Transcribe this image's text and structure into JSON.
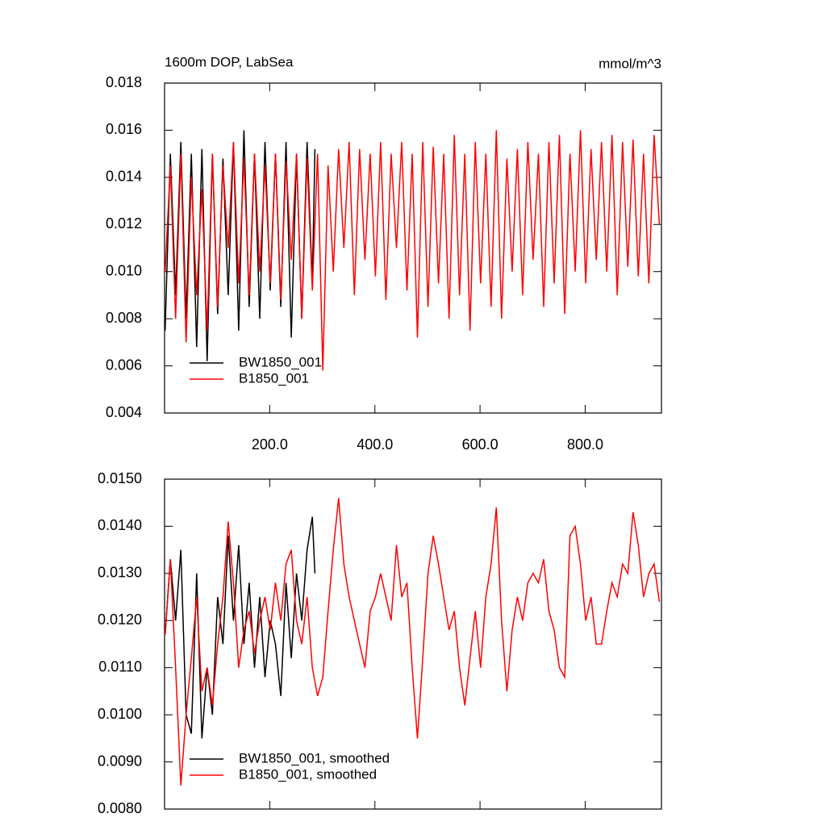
{
  "chart_data": [
    {
      "type": "line",
      "title": "1600m DOP, LabSea",
      "units": "mmol/m^3",
      "xlim": [
        0,
        945
      ],
      "ylim": [
        0.004,
        0.018
      ],
      "xticks": [
        {
          "value": 200,
          "label": "200.0"
        },
        {
          "value": 400,
          "label": "400.0"
        },
        {
          "value": 600,
          "label": "600.0"
        },
        {
          "value": 800,
          "label": "800.0"
        }
      ],
      "yticks": [
        {
          "value": 0.004,
          "label": "0.004"
        },
        {
          "value": 0.006,
          "label": "0.006"
        },
        {
          "value": 0.008,
          "label": "0.008"
        },
        {
          "value": 0.01,
          "label": "0.010"
        },
        {
          "value": 0.012,
          "label": "0.012"
        },
        {
          "value": 0.014,
          "label": "0.014"
        },
        {
          "value": 0.016,
          "label": "0.016"
        },
        {
          "value": 0.018,
          "label": "0.018"
        }
      ],
      "legend": "lower left",
      "series": [
        {
          "name": "BW1850_001",
          "color": "#000000",
          "x": [
            1,
            11,
            21,
            31,
            41,
            51,
            61,
            71,
            81,
            91,
            101,
            111,
            121,
            131,
            141,
            151,
            161,
            171,
            181,
            191,
            201,
            211,
            221,
            231,
            241,
            251,
            261,
            271,
            281,
            286
          ],
          "values": [
            0.0075,
            0.015,
            0.009,
            0.0155,
            0.008,
            0.015,
            0.0068,
            0.0152,
            0.0062,
            0.015,
            0.0082,
            0.0148,
            0.009,
            0.0155,
            0.0075,
            0.016,
            0.0085,
            0.015,
            0.008,
            0.0155,
            0.0092,
            0.015,
            0.0085,
            0.0155,
            0.0072,
            0.015,
            0.008,
            0.0155,
            0.0095,
            0.0152
          ]
        },
        {
          "name": "B1850_001",
          "color": "#ff0000",
          "x": [
            1,
            11,
            21,
            31,
            41,
            51,
            61,
            71,
            81,
            91,
            101,
            111,
            121,
            131,
            141,
            151,
            161,
            171,
            181,
            191,
            201,
            211,
            221,
            231,
            241,
            251,
            261,
            271,
            281,
            291,
            301,
            311,
            321,
            331,
            341,
            351,
            361,
            371,
            381,
            391,
            401,
            411,
            421,
            431,
            441,
            451,
            461,
            471,
            481,
            491,
            501,
            511,
            521,
            531,
            541,
            551,
            561,
            571,
            581,
            591,
            601,
            611,
            621,
            631,
            641,
            651,
            661,
            671,
            681,
            691,
            701,
            711,
            721,
            731,
            741,
            751,
            761,
            771,
            781,
            791,
            801,
            811,
            821,
            831,
            841,
            851,
            861,
            871,
            881,
            891,
            901,
            911,
            921,
            931,
            941
          ],
          "values": [
            0.01,
            0.0145,
            0.008,
            0.015,
            0.007,
            0.014,
            0.009,
            0.0135,
            0.0075,
            0.015,
            0.0085,
            0.0145,
            0.011,
            0.0155,
            0.0095,
            0.0148,
            0.009,
            0.015,
            0.01,
            0.0145,
            0.0095,
            0.015,
            0.0088,
            0.0147,
            0.0105,
            0.015,
            0.008,
            0.0148,
            0.0092,
            0.015,
            0.0058,
            0.0145,
            0.01,
            0.0152,
            0.011,
            0.0155,
            0.009,
            0.0152,
            0.0105,
            0.015,
            0.0098,
            0.0155,
            0.0088,
            0.015,
            0.011,
            0.0155,
            0.0092,
            0.015,
            0.0072,
            0.0155,
            0.0085,
            0.0153,
            0.0095,
            0.015,
            0.008,
            0.0158,
            0.009,
            0.015,
            0.0075,
            0.0155,
            0.0095,
            0.015,
            0.0085,
            0.016,
            0.008,
            0.0148,
            0.01,
            0.0152,
            0.009,
            0.0155,
            0.0105,
            0.015,
            0.0085,
            0.0155,
            0.0095,
            0.0158,
            0.0082,
            0.015,
            0.01,
            0.016,
            0.0095,
            0.0152,
            0.0105,
            0.0155,
            0.01,
            0.0158,
            0.009,
            0.0155,
            0.0102,
            0.0156,
            0.0098,
            0.015,
            0.0095,
            0.0158,
            0.012
          ]
        }
      ]
    },
    {
      "type": "line",
      "xlim": [
        0,
        945
      ],
      "ylim": [
        0.008,
        0.015
      ],
      "yticks": [
        {
          "value": 0.008,
          "label": "0.0080"
        },
        {
          "value": 0.009,
          "label": "0.0090"
        },
        {
          "value": 0.01,
          "label": "0.0100"
        },
        {
          "value": 0.011,
          "label": "0.0110"
        },
        {
          "value": 0.012,
          "label": "0.0120"
        },
        {
          "value": 0.013,
          "label": "0.0130"
        },
        {
          "value": 0.014,
          "label": "0.0140"
        },
        {
          "value": 0.015,
          "label": "0.0150"
        }
      ],
      "legend": "lower left",
      "series": [
        {
          "name": "BW1850_001, smoothed",
          "color": "#000000",
          "x": [
            1,
            11,
            21,
            31,
            41,
            51,
            61,
            71,
            81,
            91,
            101,
            111,
            121,
            131,
            141,
            151,
            161,
            171,
            181,
            191,
            201,
            211,
            221,
            231,
            241,
            251,
            261,
            271,
            281,
            286
          ],
          "values": [
            0.0117,
            0.0133,
            0.012,
            0.0135,
            0.01,
            0.0096,
            0.013,
            0.0095,
            0.011,
            0.01,
            0.0125,
            0.0115,
            0.0138,
            0.012,
            0.0136,
            0.0115,
            0.0128,
            0.011,
            0.0125,
            0.0108,
            0.012,
            0.0115,
            0.0104,
            0.0128,
            0.0112,
            0.013,
            0.012,
            0.0135,
            0.0142,
            0.013
          ]
        },
        {
          "name": "B1850_001, smoothed",
          "color": "#ff0000",
          "x": [
            1,
            11,
            21,
            31,
            41,
            51,
            61,
            71,
            81,
            91,
            101,
            111,
            121,
            131,
            141,
            151,
            161,
            171,
            181,
            191,
            201,
            211,
            221,
            231,
            241,
            251,
            261,
            271,
            281,
            291,
            301,
            311,
            321,
            331,
            341,
            351,
            361,
            371,
            381,
            391,
            401,
            411,
            421,
            431,
            441,
            451,
            461,
            471,
            481,
            491,
            501,
            511,
            521,
            531,
            541,
            551,
            561,
            571,
            581,
            591,
            601,
            611,
            621,
            631,
            641,
            651,
            661,
            671,
            681,
            691,
            701,
            711,
            721,
            731,
            741,
            751,
            761,
            771,
            781,
            791,
            801,
            811,
            821,
            831,
            841,
            851,
            861,
            871,
            881,
            891,
            901,
            911,
            921,
            931,
            941
          ],
          "values": [
            0.0117,
            0.0133,
            0.011,
            0.0085,
            0.01,
            0.0112,
            0.0125,
            0.0105,
            0.011,
            0.0102,
            0.0115,
            0.0125,
            0.0141,
            0.0128,
            0.011,
            0.0118,
            0.0122,
            0.0113,
            0.012,
            0.0125,
            0.0118,
            0.0128,
            0.012,
            0.0132,
            0.0135,
            0.012,
            0.0115,
            0.0125,
            0.011,
            0.0104,
            0.0108,
            0.0122,
            0.0135,
            0.0146,
            0.0132,
            0.0125,
            0.012,
            0.0115,
            0.011,
            0.0122,
            0.0125,
            0.013,
            0.0125,
            0.012,
            0.0136,
            0.0125,
            0.0128,
            0.011,
            0.0095,
            0.0112,
            0.013,
            0.0138,
            0.0132,
            0.0125,
            0.0118,
            0.0122,
            0.011,
            0.0102,
            0.0112,
            0.0122,
            0.011,
            0.0125,
            0.0132,
            0.0144,
            0.012,
            0.0105,
            0.0118,
            0.0125,
            0.012,
            0.0128,
            0.013,
            0.0128,
            0.0133,
            0.0122,
            0.0118,
            0.011,
            0.0108,
            0.0138,
            0.014,
            0.0132,
            0.012,
            0.0125,
            0.0115,
            0.0115,
            0.0122,
            0.0128,
            0.0125,
            0.0132,
            0.013,
            0.0143,
            0.0136,
            0.0125,
            0.013,
            0.0132,
            0.0124
          ]
        }
      ]
    }
  ]
}
